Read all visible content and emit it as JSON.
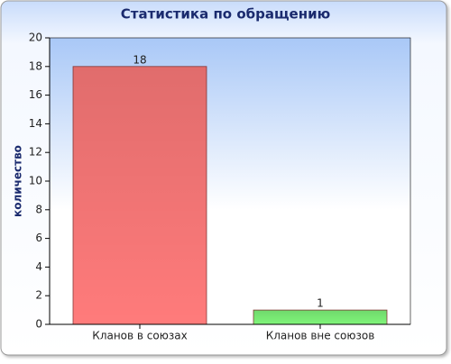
{
  "chart_data": {
    "type": "bar",
    "title": "Статистика по обращению",
    "y_label": "количество",
    "categories": [
      "Кланов в союзах",
      "Кланов вне союзов"
    ],
    "values": [
      18,
      1
    ],
    "colors": [
      "#ff7b7b",
      "#7ff57a"
    ],
    "ylim": [
      0,
      20
    ],
    "yticks": [
      0,
      2,
      4,
      6,
      8,
      10,
      12,
      14,
      16,
      18,
      20
    ]
  }
}
